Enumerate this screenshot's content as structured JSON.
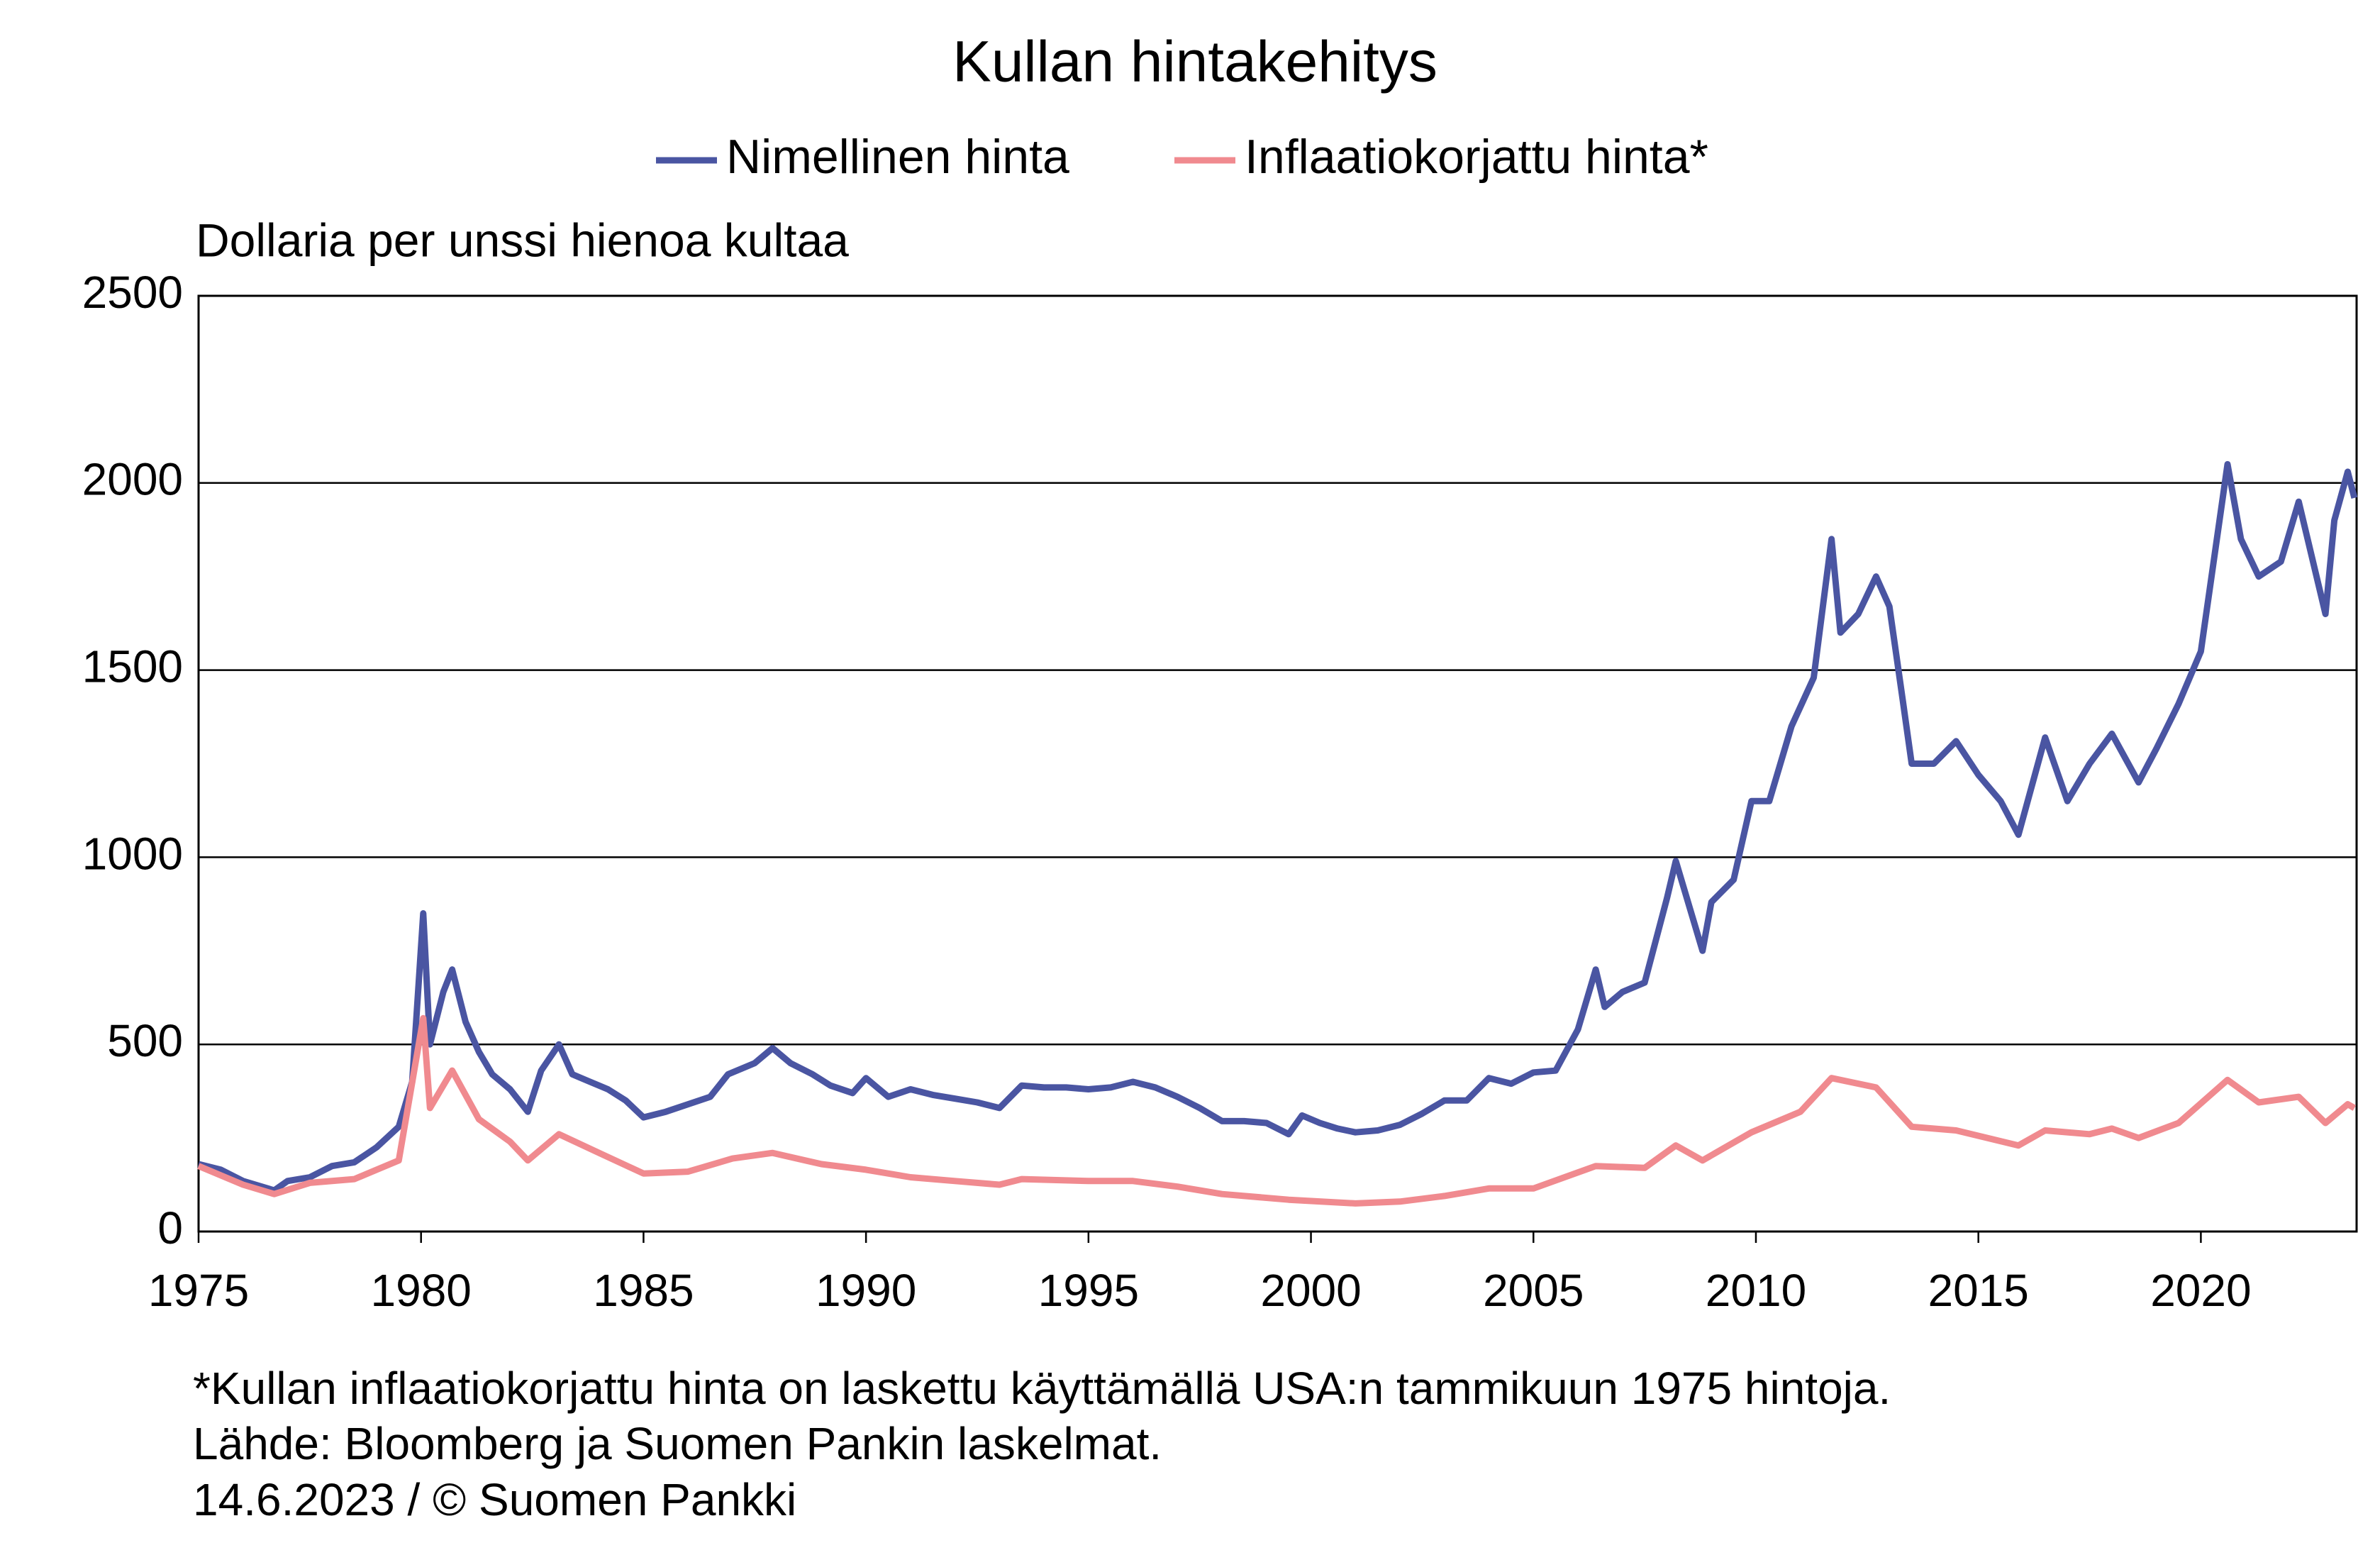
{
  "chart_data": {
    "type": "line",
    "title": "Kullan hintakehitys",
    "y_label": "Dollaria per unssi hienoa kultaa",
    "notes": [
      "*Kullan inflaatiokorjattu hinta on laskettu käyttämällä USA:n tammikuun 1975 hintoja.",
      "Lähde: Bloomberg ja Suomen Pankin laskelmat.",
      "14.6.2023 / © Suomen Pankki"
    ],
    "xlim": [
      1975,
      2023.5
    ],
    "xticks": [
      1975,
      1980,
      1985,
      1990,
      1995,
      2000,
      2005,
      2010,
      2015,
      2020
    ],
    "ylim": [
      0,
      2500
    ],
    "yticks": [
      0,
      500,
      1000,
      1500,
      2000,
      2500
    ],
    "grid": true,
    "series": [
      {
        "name": "Nimellinen hinta",
        "color": "#4a55a2",
        "x": [
          1975.0,
          1975.5,
          1976.0,
          1976.7,
          1977.0,
          1977.5,
          1978.0,
          1978.5,
          1979.0,
          1979.5,
          1979.8,
          1980.05,
          1980.2,
          1980.5,
          1980.7,
          1981.0,
          1981.3,
          1981.6,
          1982.0,
          1982.4,
          1982.7,
          1983.1,
          1983.4,
          1983.8,
          1984.2,
          1984.6,
          1985.0,
          1985.5,
          1986.0,
          1986.5,
          1986.9,
          1987.5,
          1987.9,
          1988.3,
          1988.8,
          1989.2,
          1989.7,
          1990.0,
          1990.5,
          1991.0,
          1991.5,
          1992.0,
          1992.5,
          1993.0,
          1993.5,
          1994.0,
          1994.5,
          1995.0,
          1995.5,
          1996.0,
          1996.5,
          1997.0,
          1997.5,
          1998.0,
          1998.5,
          1999.0,
          1999.5,
          1999.8,
          2000.2,
          2000.6,
          2001.0,
          2001.5,
          2002.0,
          2002.5,
          2003.0,
          2003.5,
          2004.0,
          2004.5,
          2005.0,
          2005.5,
          2006.0,
          2006.4,
          2006.6,
          2007.0,
          2007.5,
          2008.0,
          2008.2,
          2008.8,
          2009.0,
          2009.5,
          2009.9,
          2010.3,
          2010.8,
          2011.3,
          2011.7,
          2011.9,
          2012.3,
          2012.7,
          2013.0,
          2013.3,
          2013.5,
          2014.0,
          2014.5,
          2015.0,
          2015.5,
          2015.9,
          2016.5,
          2017.0,
          2017.5,
          2018.0,
          2018.6,
          2019.0,
          2019.5,
          2020.0,
          2020.6,
          2020.9,
          2021.3,
          2021.8,
          2022.2,
          2022.8,
          2023.0,
          2023.3,
          2023.45
        ],
        "values": [
          180,
          165,
          135,
          110,
          135,
          145,
          175,
          185,
          225,
          280,
          400,
          850,
          500,
          640,
          700,
          560,
          480,
          420,
          380,
          320,
          430,
          500,
          420,
          400,
          380,
          350,
          305,
          320,
          340,
          360,
          420,
          450,
          490,
          450,
          420,
          390,
          370,
          410,
          360,
          380,
          365,
          355,
          345,
          330,
          390,
          385,
          385,
          380,
          385,
          400,
          385,
          360,
          330,
          295,
          295,
          290,
          260,
          310,
          290,
          275,
          265,
          270,
          285,
          315,
          350,
          350,
          410,
          395,
          425,
          430,
          540,
          700,
          600,
          640,
          665,
          890,
          990,
          750,
          880,
          940,
          1150,
          1150,
          1350,
          1480,
          1850,
          1600,
          1650,
          1750,
          1670,
          1420,
          1250,
          1250,
          1310,
          1220,
          1150,
          1060,
          1320,
          1150,
          1250,
          1330,
          1200,
          1290,
          1410,
          1550,
          2050,
          1850,
          1750,
          1790,
          1950,
          1650,
          1900,
          2030,
          1960
        ]
      },
      {
        "name": "Inflaatiokorjattu hinta*",
        "color": "#f08a8f",
        "x": [
          1975.0,
          1976.0,
          1976.7,
          1977.5,
          1978.5,
          1979.5,
          1980.05,
          1980.2,
          1980.7,
          1981.3,
          1982.0,
          1982.4,
          1983.1,
          1984.0,
          1985.0,
          1986.0,
          1987.0,
          1987.9,
          1989.0,
          1990.0,
          1991.0,
          1992.0,
          1993.0,
          1993.5,
          1995.0,
          1996.0,
          1997.0,
          1998.0,
          1999.5,
          2001.0,
          2002.0,
          2003.0,
          2004.0,
          2005.0,
          2006.4,
          2007.5,
          2008.2,
          2008.8,
          2009.9,
          2011.0,
          2011.7,
          2012.7,
          2013.5,
          2014.5,
          2015.9,
          2016.5,
          2017.5,
          2018.0,
          2018.6,
          2019.5,
          2020.6,
          2021.3,
          2022.2,
          2022.8,
          2023.3,
          2023.45
        ],
        "values": [
          175,
          125,
          100,
          130,
          140,
          190,
          570,
          330,
          430,
          300,
          240,
          190,
          260,
          210,
          155,
          160,
          195,
          210,
          180,
          165,
          145,
          135,
          125,
          140,
          135,
          135,
          120,
          100,
          85,
          75,
          80,
          95,
          115,
          115,
          175,
          170,
          230,
          190,
          265,
          320,
          410,
          385,
          280,
          270,
          230,
          270,
          260,
          275,
          250,
          290,
          405,
          345,
          360,
          290,
          340,
          330
        ]
      }
    ]
  }
}
